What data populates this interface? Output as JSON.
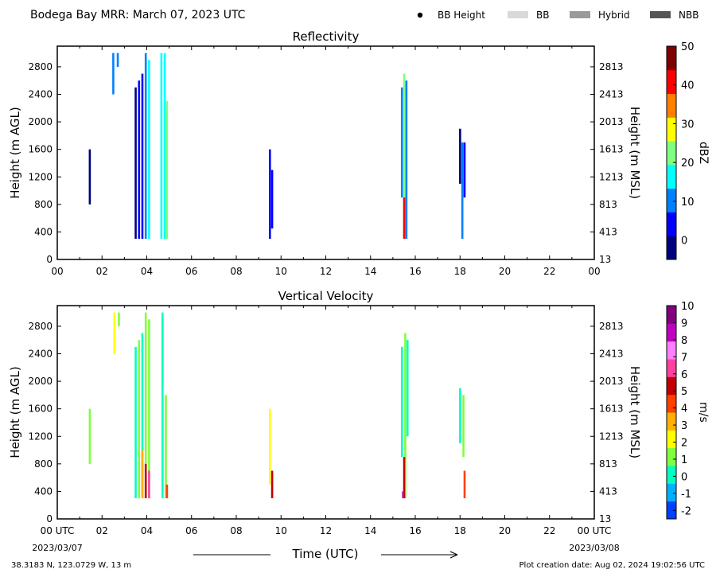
{
  "header": {
    "title": "Bodega Bay MRR:  March 07, 2023 UTC",
    "legend": [
      {
        "label": "BB Height",
        "marker": "dot",
        "color": "#000000"
      },
      {
        "label": "BB",
        "marker": "rect",
        "color": "#d9d9d9"
      },
      {
        "label": "Hybrid",
        "marker": "rect",
        "color": "#9a9a9a"
      },
      {
        "label": "NBB",
        "marker": "rect",
        "color": "#555555"
      }
    ]
  },
  "x_axis": {
    "label": "Time (UTC)",
    "range": [
      0,
      24
    ],
    "ticks": [
      "00",
      "02",
      "04",
      "06",
      "08",
      "10",
      "12",
      "14",
      "16",
      "18",
      "20",
      "22",
      "00"
    ],
    "bottom_ticks": [
      "00 UTC",
      "02",
      "04",
      "06",
      "08",
      "10",
      "12",
      "14",
      "16",
      "18",
      "20",
      "22",
      "00 UTC"
    ],
    "start_date": "2023/03/07",
    "end_date": "2023/03/08"
  },
  "footer": {
    "location": "38.3183 N, 123.0729 W, 13 m",
    "created": "Plot creation date: Aug 02, 2024 19:02:56 UTC"
  },
  "chart_data": [
    {
      "type": "heatmap",
      "title": "Reflectivity",
      "ylabel": "Height (m AGL)",
      "ylabel_right": "Height (m MSL)",
      "ylim": [
        0,
        3100
      ],
      "yticks": [
        0,
        400,
        800,
        1200,
        1600,
        2000,
        2400,
        2800
      ],
      "yticks_right": [
        "13",
        "413",
        "813",
        "1213",
        "1613",
        "2013",
        "2413",
        "2813"
      ],
      "colorbar": {
        "label": "dBZ",
        "range": [
          -5,
          50
        ],
        "ticks": [
          "0",
          "10",
          "20",
          "30",
          "40",
          "50"
        ],
        "tick_values": [
          0,
          10,
          20,
          30,
          40,
          50
        ],
        "colors": [
          "#00007f",
          "#0000ff",
          "#007fff",
          "#00ffff",
          "#7fff7f",
          "#ffff00",
          "#ff7f00",
          "#ff0000",
          "#7f0000"
        ]
      },
      "echoes": [
        {
          "t": 1.45,
          "h0": 800,
          "h1": 1600,
          "v": -1
        },
        {
          "t": 2.5,
          "h0": 2400,
          "h1": 3000,
          "v": 8
        },
        {
          "t": 2.7,
          "h0": 2800,
          "h1": 3000,
          "v": 9
        },
        {
          "t": 3.5,
          "h0": 300,
          "h1": 2500,
          "v": 0
        },
        {
          "t": 3.65,
          "h0": 300,
          "h1": 2600,
          "v": 2
        },
        {
          "t": 3.8,
          "h0": 300,
          "h1": 2700,
          "v": 6
        },
        {
          "t": 3.95,
          "h0": 300,
          "h1": 3000,
          "v": 12
        },
        {
          "t": 4.1,
          "h0": 300,
          "h1": 2900,
          "v": 16
        },
        {
          "t": 4.65,
          "h0": 300,
          "h1": 3000,
          "v": 14
        },
        {
          "t": 4.8,
          "h0": 300,
          "h1": 3000,
          "v": 18
        },
        {
          "t": 4.9,
          "h0": 300,
          "h1": 2300,
          "v": 22
        },
        {
          "t": 9.5,
          "h0": 300,
          "h1": 1600,
          "v": 4
        },
        {
          "t": 9.6,
          "h0": 450,
          "h1": 1300,
          "v": 2
        },
        {
          "t": 15.4,
          "h0": 900,
          "h1": 2500,
          "v": 12
        },
        {
          "t": 15.5,
          "h0": 300,
          "h1": 2700,
          "v": 20
        },
        {
          "t": 15.6,
          "h0": 300,
          "h1": 2600,
          "v": 10
        },
        {
          "t": 15.5,
          "h0": 300,
          "h1": 900,
          "v": 38
        },
        {
          "t": 18.0,
          "h0": 1100,
          "h1": 1900,
          "v": -1
        },
        {
          "t": 18.1,
          "h0": 300,
          "h1": 1700,
          "v": 10
        },
        {
          "t": 18.2,
          "h0": 900,
          "h1": 1700,
          "v": 3
        }
      ]
    },
    {
      "type": "heatmap",
      "title": "Vertical Velocity",
      "ylabel": "Height (m AGL)",
      "ylabel_right": "Height (m MSL)",
      "ylim": [
        0,
        3100
      ],
      "yticks": [
        0,
        400,
        800,
        1200,
        1600,
        2000,
        2400,
        2800
      ],
      "yticks_right": [
        "13",
        "413",
        "813",
        "1213",
        "1613",
        "2013",
        "2413",
        "2813"
      ],
      "colorbar": {
        "label": "m/s",
        "range": [
          -2.5,
          10
        ],
        "ticks": [
          "-2",
          "-1",
          "0",
          "1",
          "2",
          "3",
          "4",
          "5",
          "6",
          "7",
          "8",
          "9",
          "10"
        ],
        "tick_values": [
          -2,
          -1,
          0,
          1,
          2,
          3,
          4,
          5,
          6,
          7,
          8,
          9,
          10
        ],
        "colors": [
          "#0040ff",
          "#00b0ff",
          "#00ffc0",
          "#7fff3f",
          "#ffff00",
          "#ffb000",
          "#ff4000",
          "#c00000",
          "#ff40a0",
          "#ff80ff",
          "#c000c0",
          "#800080"
        ]
      },
      "echoes": [
        {
          "t": 1.45,
          "h0": 800,
          "h1": 1600,
          "v": 0.8
        },
        {
          "t": 2.55,
          "h0": 2400,
          "h1": 3000,
          "v": 1.8
        },
        {
          "t": 2.75,
          "h0": 2800,
          "h1": 3000,
          "v": 1.2
        },
        {
          "t": 3.5,
          "h0": 300,
          "h1": 2500,
          "v": 0.6
        },
        {
          "t": 3.65,
          "h0": 300,
          "h1": 2600,
          "v": 1.0
        },
        {
          "t": 3.8,
          "h0": 300,
          "h1": 2700,
          "v": 0.3
        },
        {
          "t": 3.95,
          "h0": 300,
          "h1": 3000,
          "v": 1.2
        },
        {
          "t": 4.1,
          "h0": 300,
          "h1": 2900,
          "v": 0.8
        },
        {
          "t": 3.8,
          "h0": 300,
          "h1": 1000,
          "v": 3.2
        },
        {
          "t": 3.95,
          "h0": 300,
          "h1": 800,
          "v": 5.5
        },
        {
          "t": 4.1,
          "h0": 300,
          "h1": 700,
          "v": 6.2
        },
        {
          "t": 4.7,
          "h0": 300,
          "h1": 3000,
          "v": 0.4
        },
        {
          "t": 4.85,
          "h0": 300,
          "h1": 1800,
          "v": 1.5
        },
        {
          "t": 4.9,
          "h0": 300,
          "h1": 500,
          "v": 4.5
        },
        {
          "t": 9.5,
          "h0": 500,
          "h1": 1600,
          "v": 2.5
        },
        {
          "t": 9.6,
          "h0": 300,
          "h1": 700,
          "v": 5.5
        },
        {
          "t": 15.4,
          "h0": 900,
          "h1": 2500,
          "v": 0.5
        },
        {
          "t": 15.55,
          "h0": 300,
          "h1": 2700,
          "v": 1.0
        },
        {
          "t": 15.65,
          "h0": 1200,
          "h1": 2600,
          "v": 0.2
        },
        {
          "t": 15.5,
          "h0": 300,
          "h1": 900,
          "v": 5.0
        },
        {
          "t": 15.45,
          "h0": 300,
          "h1": 400,
          "v": 8.0
        },
        {
          "t": 18.0,
          "h0": 1100,
          "h1": 1900,
          "v": 0.3
        },
        {
          "t": 18.15,
          "h0": 900,
          "h1": 1800,
          "v": 0.9
        },
        {
          "t": 18.2,
          "h0": 300,
          "h1": 700,
          "v": 4.0
        }
      ]
    }
  ]
}
